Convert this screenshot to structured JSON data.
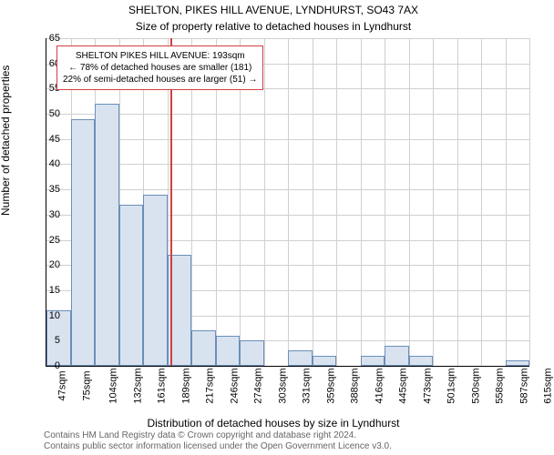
{
  "title": "SHELTON, PIKES HILL AVENUE, LYNDHURST, SO43 7AX",
  "subtitle": "Size of property relative to detached houses in Lyndhurst",
  "ylabel": "Number of detached properties",
  "xlabel": "Distribution of detached houses by size in Lyndhurst",
  "attribution_line1": "Contains HM Land Registry data © Crown copyright and database right 2024.",
  "attribution_line2": "Contains public sector information licensed under the Open Government Licence v3.0.",
  "chart": {
    "type": "histogram",
    "ylim": [
      0,
      65
    ],
    "ytick_step": 5,
    "xticks": [
      "47sqm",
      "75sqm",
      "104sqm",
      "132sqm",
      "161sqm",
      "189sqm",
      "217sqm",
      "246sqm",
      "274sqm",
      "303sqm",
      "331sqm",
      "359sqm",
      "388sqm",
      "416sqm",
      "445sqm",
      "473sqm",
      "501sqm",
      "530sqm",
      "558sqm",
      "587sqm",
      "615sqm"
    ],
    "values": [
      11,
      49,
      52,
      32,
      34,
      22,
      7,
      6,
      5,
      0,
      3,
      2,
      0,
      2,
      4,
      2,
      0,
      0,
      0,
      1
    ],
    "bar_fill": "#d9e3f0",
    "bar_stroke": "#6a8fb8",
    "grid_color": "#d0d0d0",
    "background": "#ffffff",
    "marker_position": 193,
    "marker_color": "#d04040",
    "x_domain": [
      47,
      615
    ]
  },
  "callout": {
    "line1": "SHELTON PIKES HILL AVENUE: 193sqm",
    "line2": "← 78% of detached houses are smaller (181)",
    "line3": "22% of semi-detached houses are larger (51) →"
  }
}
